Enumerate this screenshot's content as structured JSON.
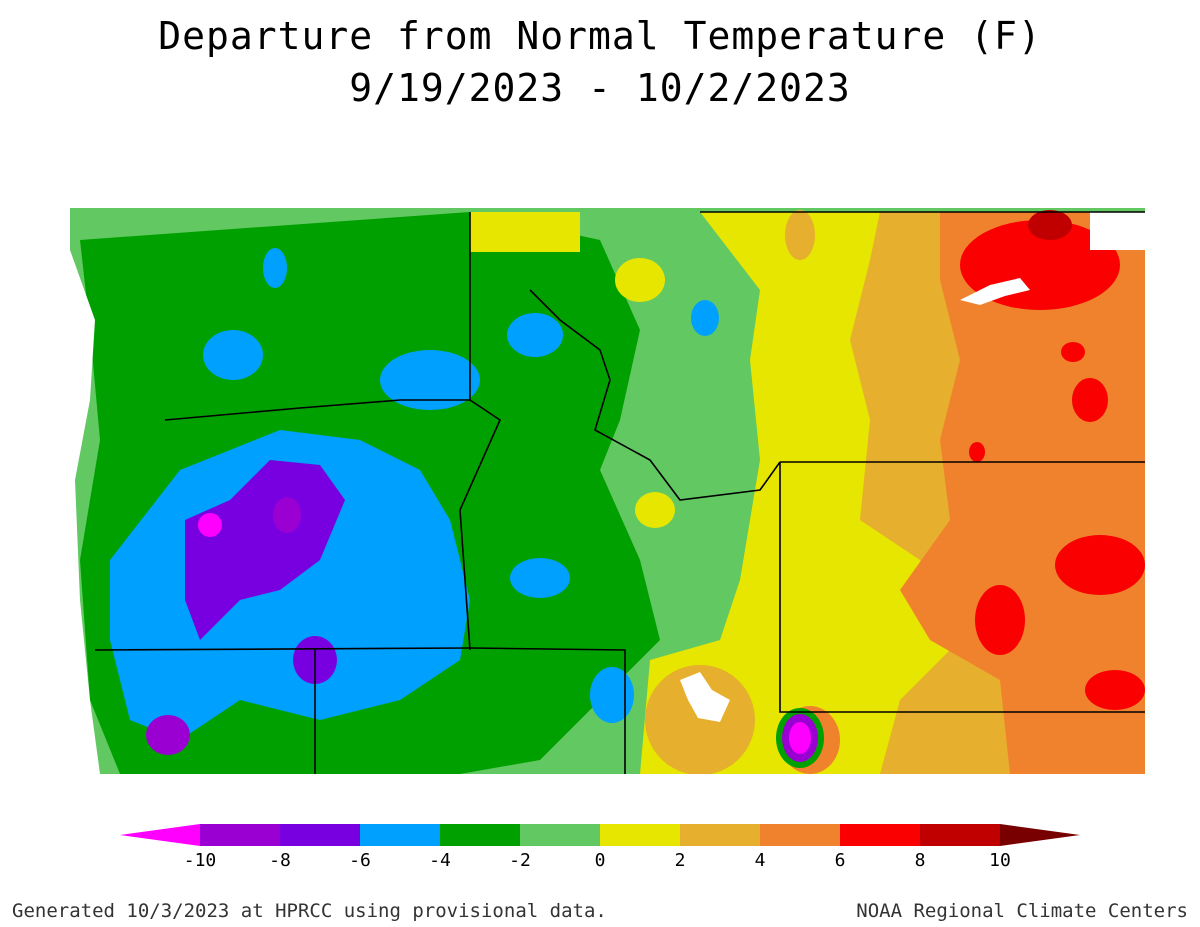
{
  "title": "Departure from Normal Temperature (F)",
  "date_range": "9/19/2023 - 10/2/2023",
  "legend": {
    "bins": [
      {
        "color": "#ff00ff"
      },
      {
        "color": "#9a00d2"
      },
      {
        "color": "#7800e0"
      },
      {
        "color": "#00a0ff"
      },
      {
        "color": "#00a000"
      },
      {
        "color": "#62c862"
      },
      {
        "color": "#e6e600"
      },
      {
        "color": "#e6af2d"
      },
      {
        "color": "#f0822d"
      },
      {
        "color": "#fa0000"
      },
      {
        "color": "#c00000"
      },
      {
        "color": "#780000"
      }
    ],
    "ticks": [
      "-10",
      "-8",
      "-6",
      "-4",
      "-2",
      "0",
      "2",
      "4",
      "6",
      "8",
      "10"
    ]
  },
  "footer": {
    "left": "Generated 10/3/2023 at HPRCC using provisional data.",
    "right": "NOAA Regional Climate Centers"
  }
}
